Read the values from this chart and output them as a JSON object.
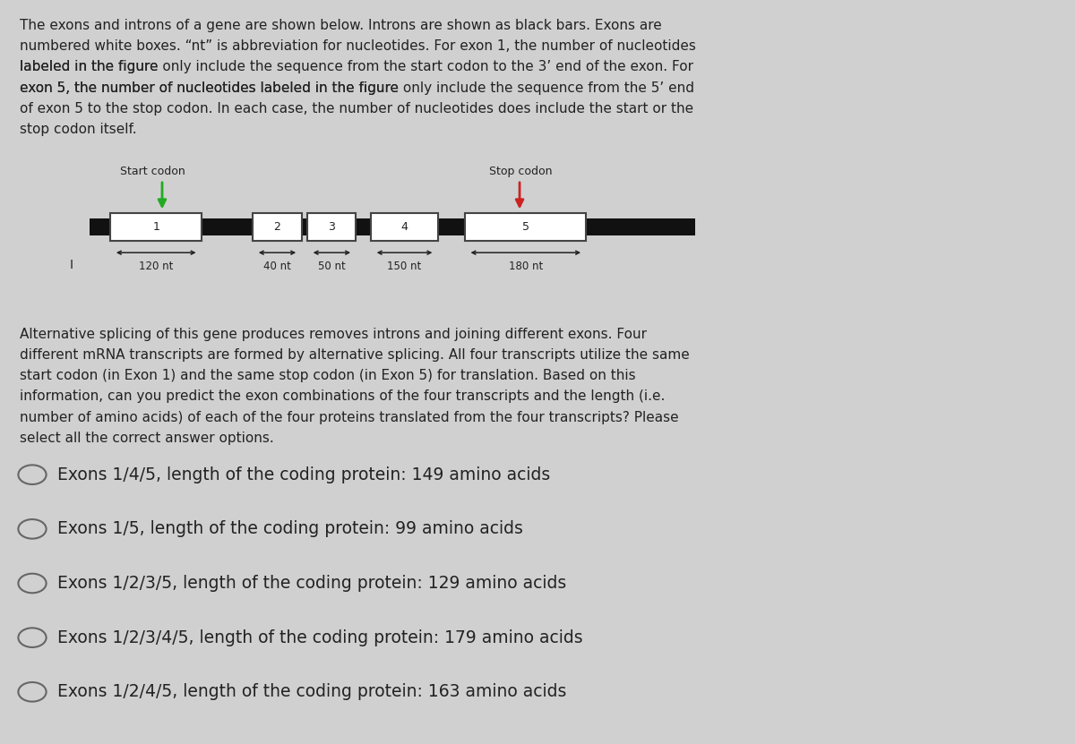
{
  "background_color": "#d0d0d0",
  "description_text_lines": [
    "The exons and introns of a gene are shown below. Introns are shown as black bars. Exons are",
    "numbered white boxes. “nt” is abbreviation for nucleotides. For exon 1, the number of nucleotides",
    "labeled in the figure only include the sequence from the start codon to the 3’ end of the exon. For",
    "exon 5, the number of nucleotides labeled in the figure only include the sequence from the 5’ end",
    "of exon 5 to the stop codon. In each case, the number of nucleotides does include the start or the",
    "stop codon itself."
  ],
  "alt_splice_text_lines": [
    "Alternative splicing of this gene produces removes introns and joining different exons. Four",
    "different mRNA transcripts are formed by alternative splicing. All four transcripts utilize the same",
    "start codon (in Exon 1) and the same stop codon (in Exon 5) for translation. Based on this",
    "information, can you predict the exon combinations of the four transcripts and the length (i.e.",
    "number of amino acids) of each of the four proteins translated from the four transcripts? Please",
    "select all the correct answer options."
  ],
  "alt_splice_bold_word": "Four",
  "answer_options": [
    "Exons 1/4/5, length of the coding protein: 149 amino acids",
    "Exons 1/5, length of the coding protein: 99 amino acids",
    "Exons 1/2/3/5, length of the coding protein: 129 amino acids",
    "Exons 1/2/3/4/5, length of the coding protein: 179 amino acids",
    "Exons 1/2/4/5, length of the coding protein: 163 amino acids"
  ],
  "exon_labels": [
    "1",
    "2",
    "3",
    "4",
    "5"
  ],
  "nt_labels": [
    "120 nt",
    "40 nt",
    "50 nt",
    "150 nt",
    "180 nt"
  ],
  "start_codon_label": "Start codon",
  "stop_codon_label": "Stop codon",
  "start_arrow_color": "#22aa22",
  "stop_arrow_color": "#cc2222",
  "intron_color": "#111111",
  "exon_facecolor": "white",
  "exon_edgecolor": "#444444",
  "text_color": "#222222",
  "font_size_desc": 11.0,
  "font_size_diagram_labels": 8.5,
  "font_size_exon": 9.0,
  "font_size_answers": 13.5,
  "font_size_alt": 11.0
}
